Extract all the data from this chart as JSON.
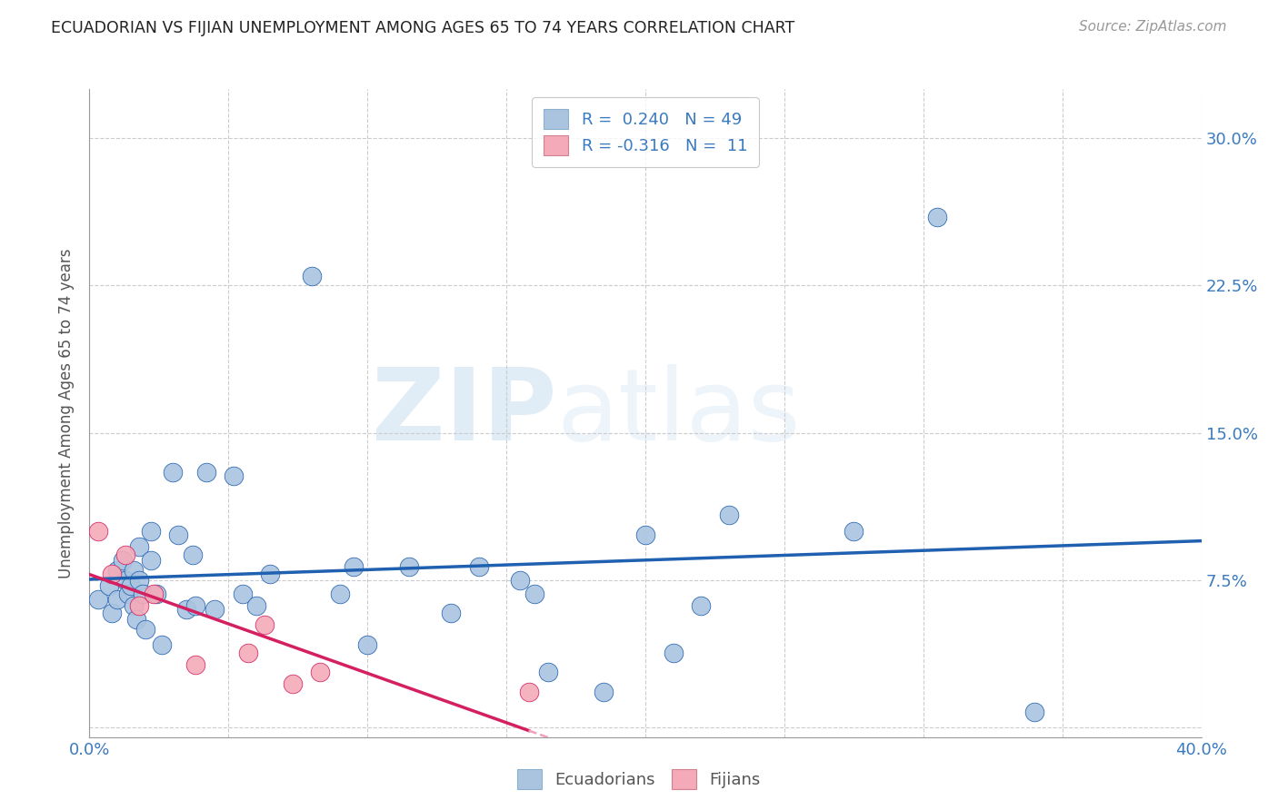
{
  "title": "ECUADORIAN VS FIJIAN UNEMPLOYMENT AMONG AGES 65 TO 74 YEARS CORRELATION CHART",
  "source": "Source: ZipAtlas.com",
  "ylabel": "Unemployment Among Ages 65 to 74 years",
  "xlim": [
    0.0,
    0.4
  ],
  "ylim": [
    -0.005,
    0.325
  ],
  "ecuadorian_color": "#aac4e0",
  "fijian_color": "#f4aab8",
  "trend_ecu_color": "#2060b0",
  "trend_fij_color": "#d42060",
  "trend_fij_ext_color": "#f0a0b8",
  "R_ecu": 0.24,
  "N_ecu": 49,
  "R_fij": -0.316,
  "N_fij": 11,
  "ecuadorian_x": [
    0.003,
    0.007,
    0.008,
    0.01,
    0.01,
    0.012,
    0.013,
    0.014,
    0.015,
    0.016,
    0.016,
    0.017,
    0.018,
    0.018,
    0.019,
    0.02,
    0.022,
    0.022,
    0.024,
    0.026,
    0.03,
    0.032,
    0.035,
    0.037,
    0.038,
    0.042,
    0.045,
    0.052,
    0.055,
    0.06,
    0.065,
    0.08,
    0.09,
    0.095,
    0.1,
    0.115,
    0.13,
    0.14,
    0.155,
    0.16,
    0.165,
    0.185,
    0.2,
    0.21,
    0.22,
    0.23,
    0.275,
    0.305,
    0.34
  ],
  "ecuadorian_y": [
    0.065,
    0.072,
    0.058,
    0.08,
    0.065,
    0.085,
    0.075,
    0.068,
    0.072,
    0.08,
    0.062,
    0.055,
    0.092,
    0.075,
    0.068,
    0.05,
    0.1,
    0.085,
    0.068,
    0.042,
    0.13,
    0.098,
    0.06,
    0.088,
    0.062,
    0.13,
    0.06,
    0.128,
    0.068,
    0.062,
    0.078,
    0.23,
    0.068,
    0.082,
    0.042,
    0.082,
    0.058,
    0.082,
    0.075,
    0.068,
    0.028,
    0.018,
    0.098,
    0.038,
    0.062,
    0.108,
    0.1,
    0.26,
    0.008
  ],
  "fijian_x": [
    0.003,
    0.008,
    0.013,
    0.018,
    0.023,
    0.038,
    0.057,
    0.063,
    0.073,
    0.083,
    0.158
  ],
  "fijian_y": [
    0.1,
    0.078,
    0.088,
    0.062,
    0.068,
    0.032,
    0.038,
    0.052,
    0.022,
    0.028,
    0.018
  ],
  "watermark_zip": "ZIP",
  "watermark_atlas": "atlas",
  "background_color": "#ffffff",
  "grid_color": "#cccccc"
}
